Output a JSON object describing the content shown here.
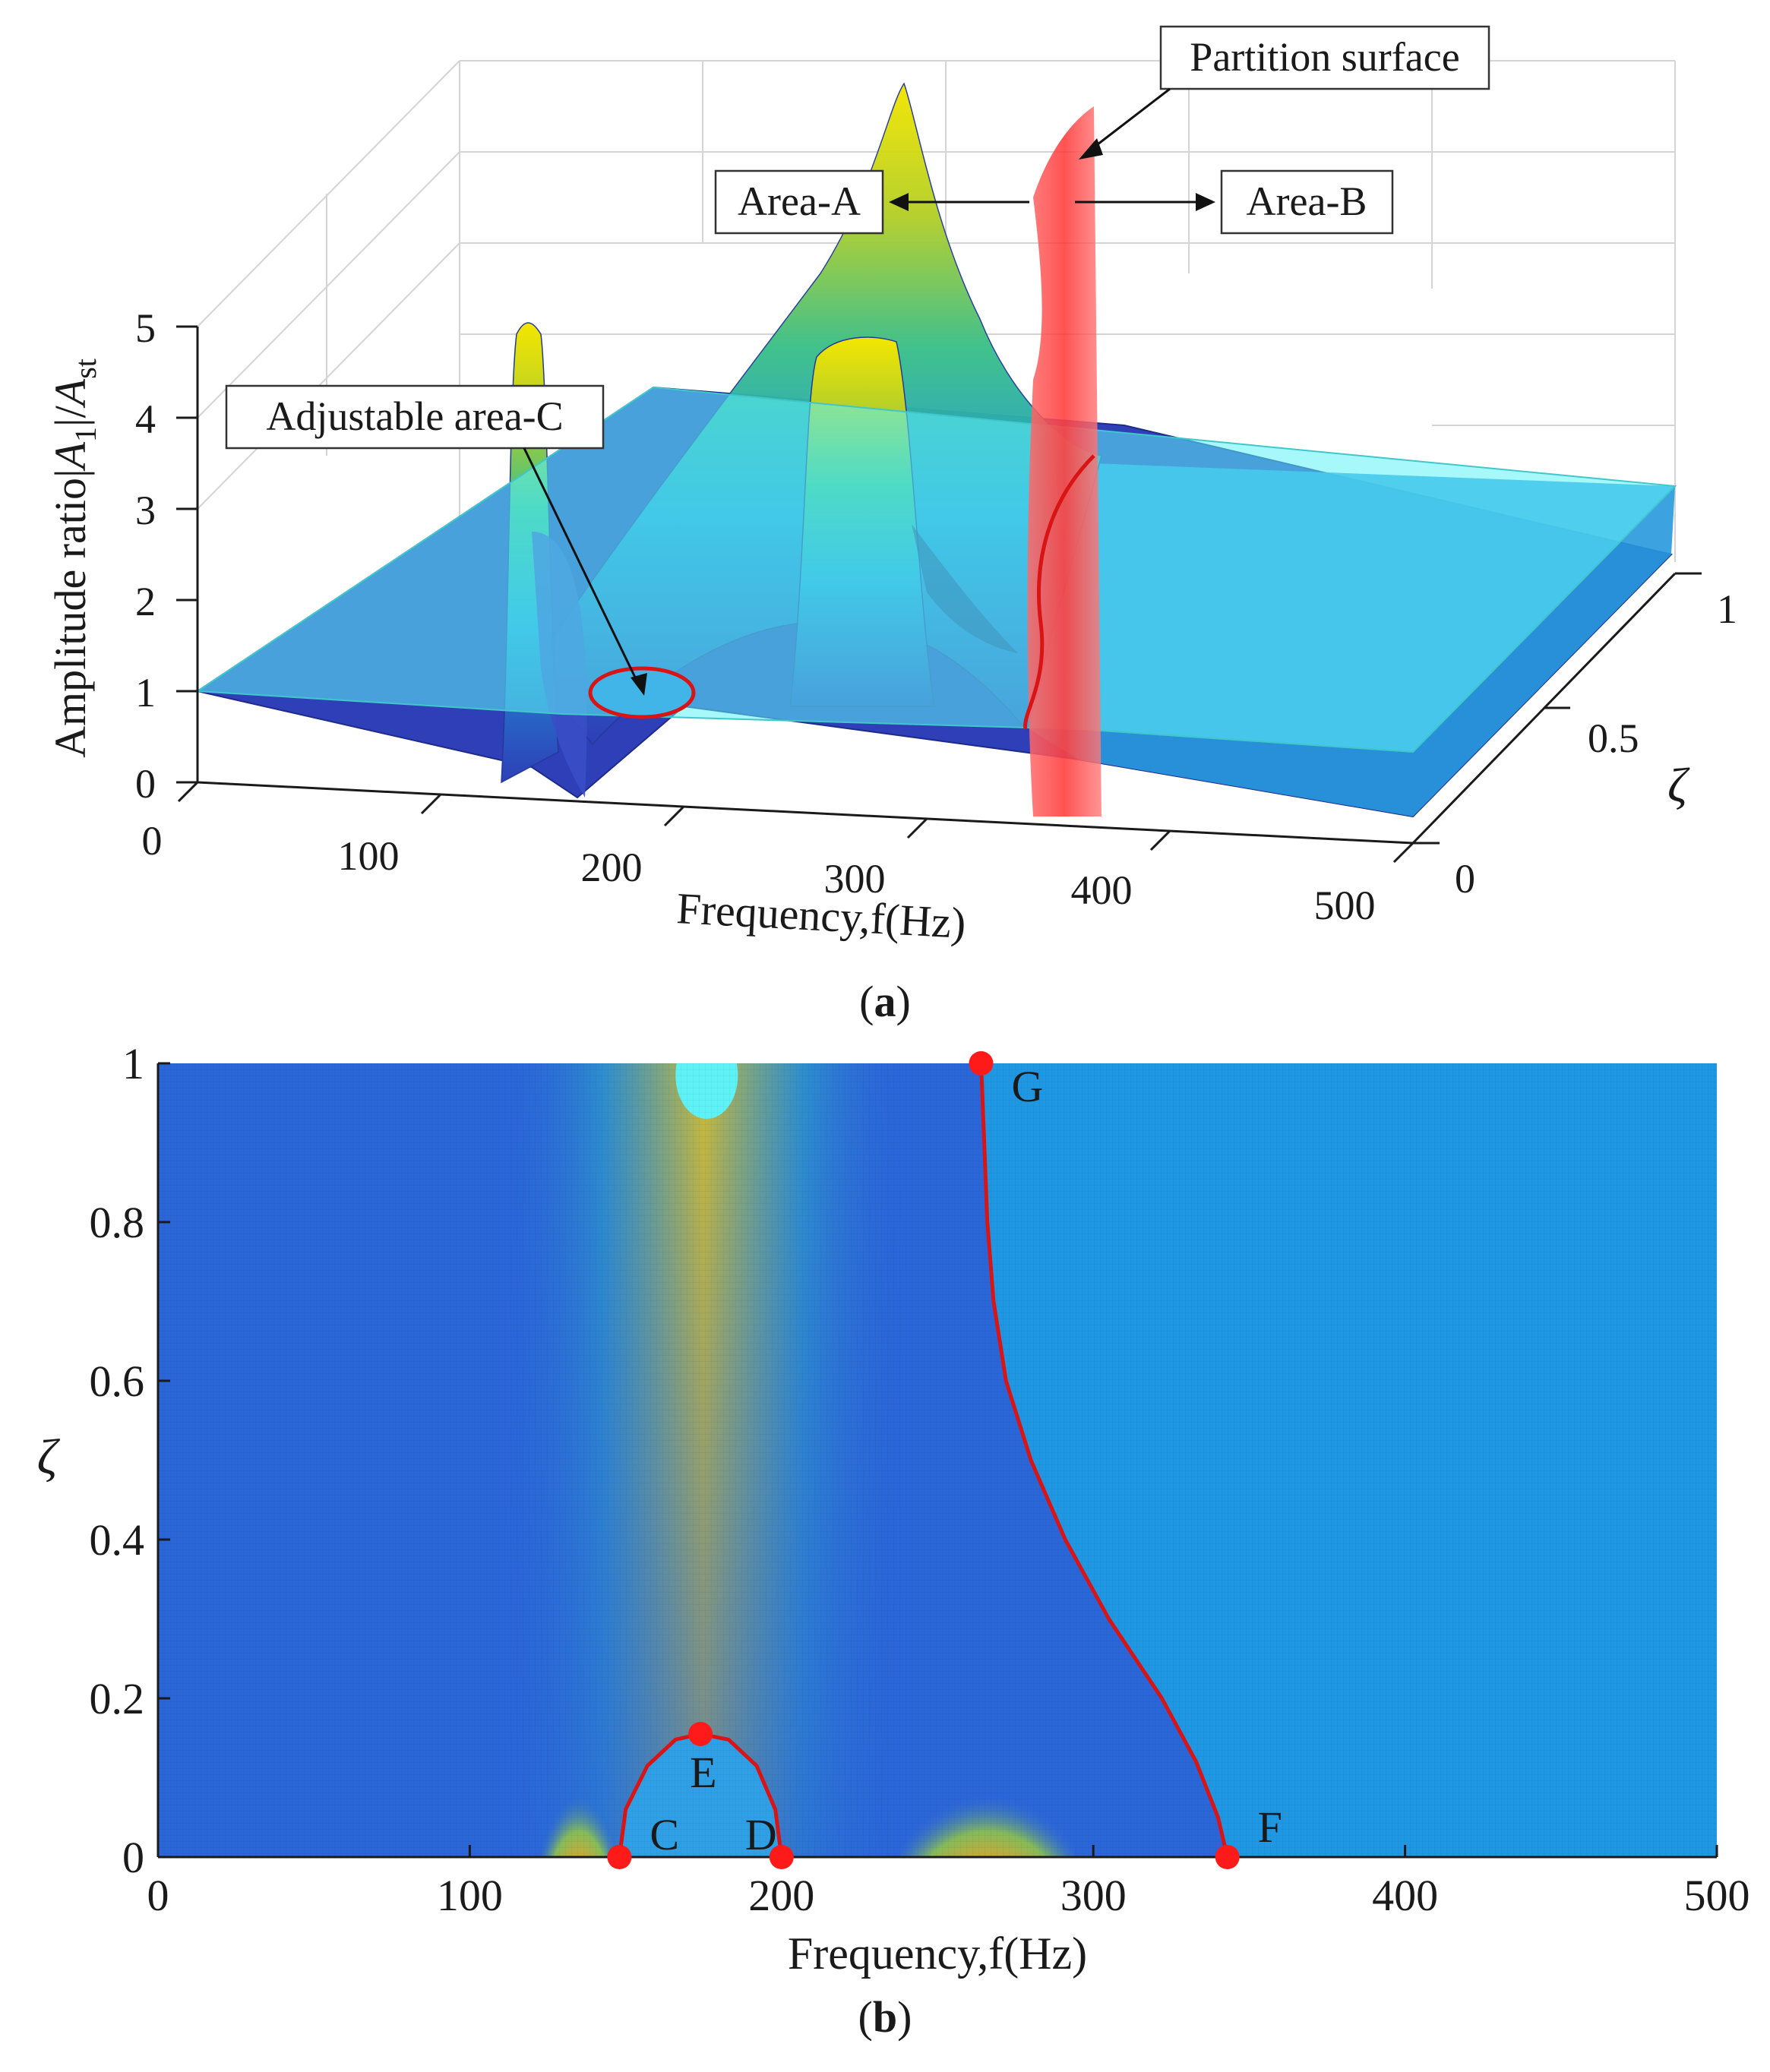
{
  "panel_a": {
    "caption_open": "(",
    "caption_letter": "a",
    "caption_close": ")",
    "annotations": {
      "partition_surface": "Partition surface",
      "area_a": "Area-A",
      "area_b": "Area-B",
      "adjustable_area_c": "Adjustable area-C"
    },
    "colors": {
      "plane": "#5ef2f7",
      "surface_low": "#2e3fb8",
      "surface_high": "#f3e600",
      "partition": "#ff4a4a"
    }
  },
  "panel_b": {
    "caption_open": "(",
    "caption_letter": "b",
    "caption_close": ")",
    "point_labels": [
      "C",
      "D",
      "E",
      "F",
      "G"
    ],
    "colors": {
      "background": "#2b66d9",
      "region_b": "#1f97e3",
      "boundary": "#d81414",
      "point": "#ff1a1a",
      "cyan": "#5ef2f7"
    }
  },
  "chart_data": [
    {
      "type": "surface",
      "panel": "a",
      "xlabel": "Frequency,f(Hz)",
      "ylabel": "ζ",
      "zlabel_prefix": "Amplitude ratio|",
      "zlabel_a": "A",
      "zlabel_a_sub": "1",
      "zlabel_mid": "|/",
      "zlabel_b": "A",
      "zlabel_b_sub": "st",
      "x_ticks": [
        "0",
        "100",
        "200",
        "300",
        "400",
        "500"
      ],
      "y_ticks": [
        "0",
        "0.5",
        "1"
      ],
      "z_ticks": [
        "0",
        "1",
        "2",
        "3",
        "4",
        "5"
      ],
      "xlim": [
        0,
        500
      ],
      "ylim": [
        0,
        1
      ],
      "zlim": [
        0,
        5
      ],
      "reference_plane_z": 1,
      "partition_frequency_approx": 340,
      "peaks_at_low_damping_hz": [
        135,
        270
      ],
      "peak_at_high_damping_hz": 175
    },
    {
      "type": "heatmap",
      "panel": "b",
      "xlabel": "Frequency,f(Hz)",
      "ylabel": "ζ",
      "x_ticks": [
        "0",
        "100",
        "200",
        "300",
        "400",
        "500"
      ],
      "y_ticks": [
        "0",
        "0.2",
        "0.4",
        "0.6",
        "0.8",
        "1"
      ],
      "xlim": [
        0,
        500
      ],
      "ylim": [
        0,
        1
      ],
      "points": [
        {
          "label": "C",
          "f": 148,
          "zeta": 0.0
        },
        {
          "label": "D",
          "f": 200,
          "zeta": 0.0
        },
        {
          "label": "E",
          "f": 174,
          "zeta": 0.155
        },
        {
          "label": "F",
          "f": 343,
          "zeta": 0.0
        },
        {
          "label": "G",
          "f": 264,
          "zeta": 1.0
        }
      ],
      "boundary_curve": [
        [
          343,
          0.0
        ],
        [
          340,
          0.05
        ],
        [
          333,
          0.12
        ],
        [
          322,
          0.2
        ],
        [
          305,
          0.3
        ],
        [
          291,
          0.4
        ],
        [
          280,
          0.5
        ],
        [
          272,
          0.6
        ],
        [
          268,
          0.7
        ],
        [
          266,
          0.8
        ],
        [
          265,
          0.9
        ],
        [
          264,
          1.0
        ]
      ],
      "arc_curve": [
        [
          148,
          0.0
        ],
        [
          150,
          0.06
        ],
        [
          157,
          0.115
        ],
        [
          166,
          0.148
        ],
        [
          174,
          0.155
        ],
        [
          183,
          0.148
        ],
        [
          192,
          0.115
        ],
        [
          198,
          0.06
        ],
        [
          200,
          0.0
        ]
      ]
    }
  ]
}
